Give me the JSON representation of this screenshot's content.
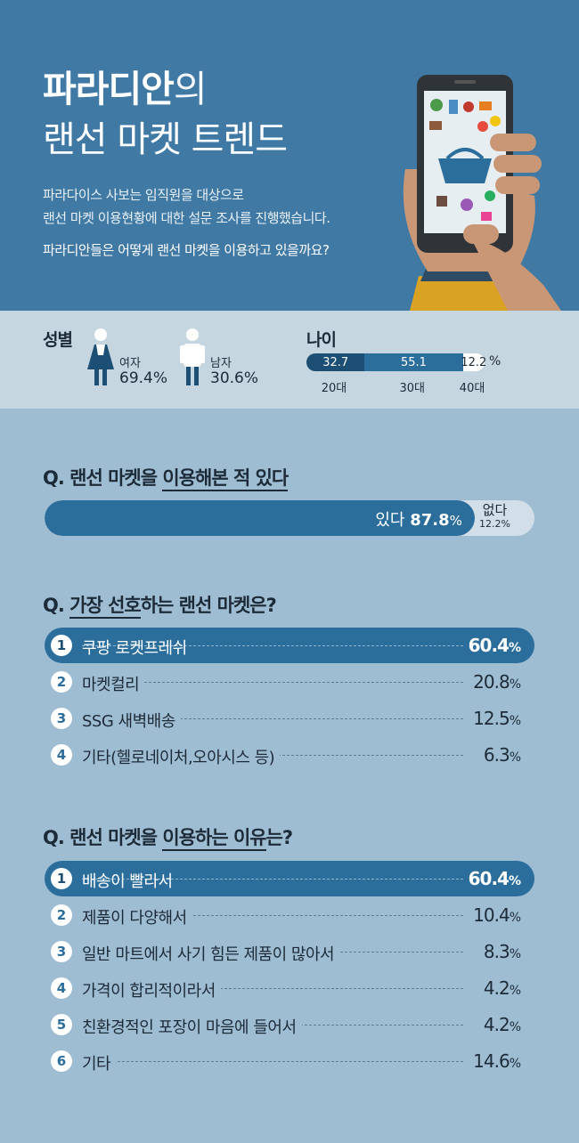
{
  "header": {
    "title_bold": "파라디안",
    "title_light": "의",
    "subtitle": "랜선 마켓 트렌드",
    "intro_line1": "파라다이스 사보는 임직원을 대상으로",
    "intro_line2": "랜선 마켓 이용현황에 대한 설문 조사를 진행했습니다.",
    "intro_question": "파라디안들은 어떻게 랜선 마켓을 이용하고 있을까요?"
  },
  "demographics": {
    "gender_label": "성별",
    "female_label": "여자",
    "female_value": "69.4%",
    "male_label": "남자",
    "male_value": "30.6%",
    "age_label": "나이",
    "age_unit": "%",
    "ages": [
      {
        "label": "20대",
        "value": 32.7,
        "display": "32.7",
        "color": "#1d4f75"
      },
      {
        "label": "30대",
        "value": 55.1,
        "display": "55.1",
        "color": "#2b6d9b"
      },
      {
        "label": "40대",
        "value": 12.2,
        "display": "12.2",
        "color": "#ffffff"
      }
    ]
  },
  "q1": {
    "title_pre": "Q. 랜선 마켓을 ",
    "title_underline": "이용해본 적 있다",
    "yes_label": "있다",
    "yes_value": "87.8",
    "yes_unit": "%",
    "yes_fraction": 0.878,
    "no_label": "없다",
    "no_value": "12.2%"
  },
  "q2": {
    "title_pre": "Q. ",
    "title_underline": "가장 선호",
    "title_post": "하는 랜선 마켓은?",
    "items": [
      {
        "rank": "1",
        "label": "쿠팡 로켓프레쉬",
        "value": "60.4",
        "unit": "%"
      },
      {
        "rank": "2",
        "label": "마켓컬리",
        "value": "20.8",
        "unit": "%"
      },
      {
        "rank": "3",
        "label": "SSG 새벽배송",
        "value": "12.5",
        "unit": "%"
      },
      {
        "rank": "4",
        "label": "기타(헬로네이처,오아시스 등)",
        "value": "6.3",
        "unit": "%"
      }
    ]
  },
  "q3": {
    "title_pre": "Q. 랜선 마켓을 ",
    "title_underline": "이용하는 이유",
    "title_post": "는?",
    "items": [
      {
        "rank": "1",
        "label": "배송이 빨라서",
        "value": "60.4",
        "unit": "%"
      },
      {
        "rank": "2",
        "label": "제품이 다양해서",
        "value": "10.4",
        "unit": "%"
      },
      {
        "rank": "3",
        "label": "일반 마트에서 사기 힘든 제품이 많아서",
        "value": "8.3",
        "unit": "%"
      },
      {
        "rank": "4",
        "label": "가격이 합리적이라서",
        "value": "4.2",
        "unit": "%"
      },
      {
        "rank": "5",
        "label": "친환경적인 포장이 마음에 들어서",
        "value": "4.2",
        "unit": "%"
      },
      {
        "rank": "6",
        "label": "기타",
        "value": "14.6",
        "unit": "%"
      }
    ]
  },
  "chart_data": [
    {
      "type": "bar",
      "categories": [
        "여자",
        "남자"
      ],
      "values": [
        69.4,
        30.6
      ],
      "title": "성별"
    },
    {
      "type": "bar",
      "categories": [
        "20대",
        "30대",
        "40대"
      ],
      "values": [
        32.7,
        55.1,
        12.2
      ],
      "title": "나이"
    },
    {
      "type": "bar",
      "categories": [
        "있다",
        "없다"
      ],
      "values": [
        87.8,
        12.2
      ],
      "title": "Q. 랜선 마켓을 이용해본 적 있다"
    },
    {
      "type": "bar",
      "categories": [
        "쿠팡 로켓프레쉬",
        "마켓컬리",
        "SSG 새벽배송",
        "기타(헬로네이처,오아시스 등)"
      ],
      "values": [
        60.4,
        20.8,
        12.5,
        6.3
      ],
      "title": "Q. 가장 선호하는 랜선 마켓은?"
    },
    {
      "type": "bar",
      "categories": [
        "배송이 빨라서",
        "제품이 다양해서",
        "일반 마트에서 사기 힘든 제품이 많아서",
        "가격이 합리적이라서",
        "친환경적인 포장이 마음에 들어서",
        "기타"
      ],
      "values": [
        60.4,
        10.4,
        8.3,
        4.2,
        4.2,
        14.6
      ],
      "title": "Q. 랜선 마켓을 이용하는 이유는?"
    }
  ]
}
